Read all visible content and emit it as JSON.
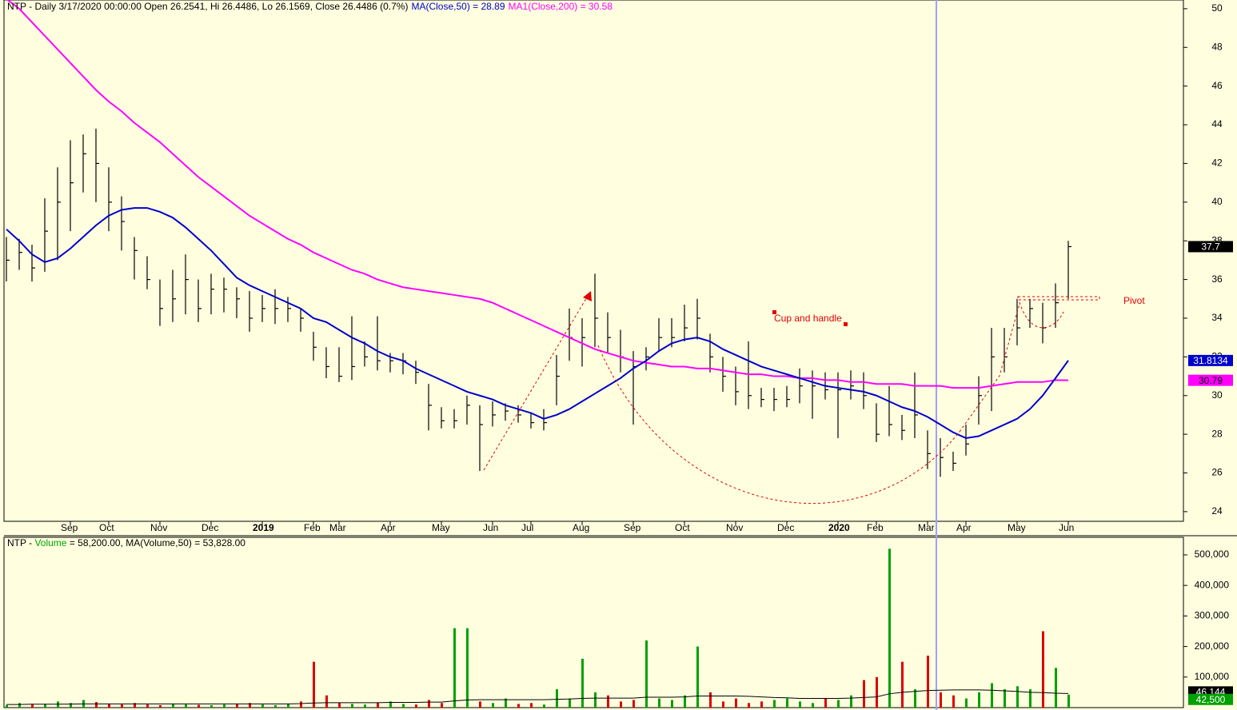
{
  "chart_data": {
    "type": "ohlc",
    "header": "NTP - Daily 3/17/2020 00:00:00 Open 26.2541, Hi 26.4486, Lo 26.1569, Close 26.4486 (0.7%)",
    "categories": [
      null,
      null,
      null,
      null,
      null,
      "Sep",
      null,
      null,
      "Oct",
      null,
      null,
      null,
      "Nov",
      null,
      null,
      null,
      "Dec",
      null,
      null,
      null,
      "2019",
      null,
      null,
      null,
      "Feb",
      null,
      "Mar",
      null,
      null,
      null,
      "Apr",
      null,
      null,
      null,
      "May",
      null,
      null,
      null,
      "Jun",
      null,
      null,
      "Jul",
      null,
      null,
      null,
      "Aug",
      null,
      null,
      null,
      "Sep",
      null,
      null,
      null,
      "Oct",
      null,
      null,
      null,
      "Nov",
      null,
      null,
      null,
      "Dec",
      null,
      null,
      null,
      "2020",
      null,
      null,
      "Feb",
      null,
      null,
      null,
      "Mar",
      null,
      null,
      "Apr",
      null,
      null,
      null,
      "May",
      null,
      null,
      null,
      "Jun"
    ],
    "ylim": [
      23.5,
      50.45
    ],
    "yticks": [
      24,
      26,
      28,
      30,
      32,
      34,
      36,
      38,
      40,
      42,
      44,
      46,
      48,
      50
    ],
    "color": "#000000",
    "close": [
      37,
      37.4,
      36.6,
      38.5,
      40,
      41,
      42.5,
      42,
      40,
      39,
      37.5,
      36,
      34.5,
      35,
      36,
      34.5,
      35.5,
      35.5,
      35,
      34,
      34.5,
      34.5,
      34.5,
      34,
      32.5,
      31.5,
      31,
      31.5,
      32,
      31.8,
      31.8,
      31.8,
      31.2,
      29.5,
      28.7,
      28.7,
      29.5,
      28.5,
      29,
      29.2,
      29,
      28.6,
      28.6,
      31,
      33,
      33,
      34,
      33,
      32,
      31.5,
      32,
      33,
      33,
      33.5,
      34,
      32,
      31,
      30.2,
      30,
      29.8,
      29.8,
      29.8,
      30.5,
      30.5,
      30.3,
      30.3,
      30.5,
      30,
      28,
      28.5,
      28.2,
      29,
      27,
      26.8,
      26.5,
      27.5,
      30,
      32,
      32,
      33.5,
      34.5,
      33.5,
      34.8,
      37.7
    ],
    "high": [
      38.2,
      38.1,
      37.8,
      40.2,
      41.8,
      43.2,
      43.5,
      43.8,
      41.8,
      40.3,
      38.2,
      37.2,
      36,
      36.5,
      37.3,
      36,
      36.3,
      36.1,
      35.6,
      35.4,
      35.2,
      35.5,
      35.1,
      34.5,
      33.3,
      32.5,
      32.5,
      34.1,
      32.8,
      34.1,
      32.2,
      32.2,
      31.8,
      30.6,
      29.4,
      29.3,
      30,
      29.5,
      29.7,
      29.6,
      29.5,
      29.1,
      29.3,
      32.1,
      34.5,
      34,
      36.3,
      34.3,
      33.4,
      32.3,
      32.5,
      34,
      34,
      34.7,
      35,
      33.2,
      32,
      31.5,
      32.8,
      30.4,
      30.4,
      30.5,
      31.4,
      31.3,
      31.2,
      31.2,
      31.3,
      31.2,
      29.6,
      30.5,
      29,
      31.2,
      28.2,
      27.8,
      27.1,
      28.5,
      31,
      33.5,
      33.5,
      35,
      35,
      34.8,
      35.8,
      38
    ],
    "low": [
      35.9,
      36.5,
      35.9,
      36.4,
      37,
      38.5,
      40.5,
      40,
      38.5,
      37.5,
      36,
      35.5,
      33.6,
      33.8,
      34.2,
      33.8,
      34.2,
      34.3,
      34,
      33.3,
      33.8,
      33.7,
      33.8,
      33.3,
      31.8,
      30.9,
      30.7,
      30.8,
      31.5,
      31.3,
      31.2,
      31.1,
      30.6,
      28.2,
      28.3,
      28.3,
      28.5,
      26.1,
      28.4,
      28.7,
      28.6,
      28.3,
      28.2,
      29.5,
      31.8,
      31.5,
      32.5,
      32.2,
      31.2,
      28.5,
      31.3,
      32.3,
      32.5,
      32.8,
      32.9,
      31.2,
      30.2,
      29.5,
      29.3,
      29.4,
      29.2,
      29.4,
      29.6,
      28.8,
      29.8,
      27.8,
      29.8,
      29.3,
      27.6,
      27.9,
      27.7,
      27.8,
      26.2,
      25.8,
      26.1,
      26.9,
      28.5,
      29.2,
      31.2,
      32.6,
      33.5,
      32.7,
      33.5,
      35
    ],
    "ma50": {
      "header": "MA(Close,50) = 28.89",
      "color": "#0000cc",
      "values": [
        38.6,
        38.0,
        37.3,
        36.9,
        37.1,
        37.6,
        38.2,
        38.8,
        39.3,
        39.6,
        39.7,
        39.7,
        39.5,
        39.2,
        38.7,
        38.1,
        37.5,
        36.8,
        36.1,
        35.7,
        35.4,
        35.1,
        34.8,
        34.5,
        34.0,
        33.8,
        33.4,
        33.0,
        32.7,
        32.3,
        32.0,
        31.8,
        31.4,
        31.1,
        30.8,
        30.5,
        30.2,
        30.0,
        29.8,
        29.5,
        29.3,
        29.1,
        28.8,
        29.0,
        29.3,
        29.7,
        30.1,
        30.5,
        30.9,
        31.4,
        31.8,
        32.3,
        32.7,
        32.9,
        33.0,
        32.8,
        32.4,
        32.1,
        31.8,
        31.5,
        31.3,
        31.1,
        30.9,
        30.7,
        30.5,
        30.4,
        30.3,
        30.2,
        30.0,
        29.7,
        29.4,
        29.2,
        28.9,
        28.5,
        28.1,
        27.8,
        27.9,
        28.2,
        28.5,
        28.8,
        29.3,
        30.0,
        30.9,
        31.8134
      ]
    },
    "ma200": {
      "header": "MA1(Close,200) = 30.58",
      "color": "#ff00ff",
      "values": [
        50.5,
        50.0,
        49.3,
        48.6,
        47.9,
        47.2,
        46.5,
        45.8,
        45.2,
        44.7,
        44.1,
        43.6,
        43.1,
        42.5,
        41.9,
        41.3,
        40.8,
        40.3,
        39.8,
        39.3,
        38.9,
        38.5,
        38.1,
        37.8,
        37.4,
        37.1,
        36.8,
        36.5,
        36.3,
        36.0,
        35.8,
        35.6,
        35.5,
        35.4,
        35.3,
        35.2,
        35.1,
        35.0,
        34.8,
        34.5,
        34.2,
        33.9,
        33.6,
        33.3,
        33.0,
        32.7,
        32.4,
        32.2,
        32.0,
        31.8,
        31.7,
        31.6,
        31.5,
        31.5,
        31.4,
        31.4,
        31.3,
        31.2,
        31.1,
        31.1,
        31.0,
        31.0,
        30.9,
        30.9,
        30.8,
        30.8,
        30.7,
        30.7,
        30.6,
        30.6,
        30.6,
        30.5,
        30.5,
        30.5,
        30.4,
        30.4,
        30.4,
        30.5,
        30.6,
        30.7,
        30.7,
        30.7,
        30.8,
        30.79
      ]
    },
    "annotations": [
      "Cup and handle",
      "Pivot"
    ],
    "volume": {
      "header_parts": [
        "NTP - ",
        "Volume",
        " = 58,200.00, MA(Volume,50) = 53,828.00"
      ],
      "up_color": "#00a000",
      "down_color": "#dd0000",
      "ylim": [
        0,
        557500
      ],
      "yticks": [
        {
          "value": 100000,
          "label": "100,000"
        },
        {
          "value": 200000,
          "label": "200,000"
        },
        {
          "value": 300000,
          "label": "300,000"
        },
        {
          "value": 400000,
          "label": "400,000"
        },
        {
          "value": 500000,
          "label": "500,000"
        }
      ],
      "values": [
        8000,
        15000,
        10000,
        12000,
        20000,
        15000,
        25000,
        18000,
        12000,
        10000,
        15000,
        10000,
        8000,
        12000,
        10000,
        9000,
        8000,
        10000,
        12000,
        15000,
        10000,
        8000,
        12000,
        20000,
        150000,
        40000,
        15000,
        12000,
        10000,
        15000,
        20000,
        12000,
        10000,
        25000,
        15000,
        260000,
        260000,
        20000,
        15000,
        30000,
        12000,
        15000,
        10000,
        60000,
        30000,
        160000,
        50000,
        40000,
        20000,
        25000,
        220000,
        30000,
        25000,
        40000,
        200000,
        50000,
        20000,
        30000,
        15000,
        20000,
        25000,
        30000,
        20000,
        15000,
        30000,
        25000,
        40000,
        90000,
        100000,
        520000,
        150000,
        60000,
        170000,
        50000,
        40000,
        30000,
        50000,
        80000,
        60000,
        70000,
        60000,
        250000,
        130000,
        42500
      ],
      "last_label": "42,500",
      "ma": {
        "color": "#000000",
        "last_label": "46,144",
        "values": [
          10000,
          10000,
          11000,
          11000,
          11000,
          11500,
          12000,
          12000,
          12000,
          12000,
          12000,
          12000,
          12000,
          12000,
          12000,
          12000,
          12000,
          12000,
          12000,
          12000,
          12000,
          12000,
          12000,
          13000,
          15000,
          16000,
          16000,
          16000,
          16000,
          16000,
          17000,
          17000,
          17000,
          18000,
          18000,
          22000,
          25000,
          26000,
          26000,
          26000,
          26000,
          26000,
          26000,
          27000,
          28000,
          30000,
          31000,
          31000,
          31000,
          31000,
          34000,
          34000,
          34000,
          35000,
          38000,
          38000,
          38000,
          38000,
          37000,
          35000,
          33000,
          32000,
          30000,
          30000,
          30000,
          30000,
          31000,
          33000,
          35000,
          45000,
          50000,
          53000,
          56000,
          57000,
          58000,
          58000,
          58000,
          57000,
          55000,
          53000,
          50000,
          49000,
          47000,
          46144
        ]
      }
    }
  }
}
